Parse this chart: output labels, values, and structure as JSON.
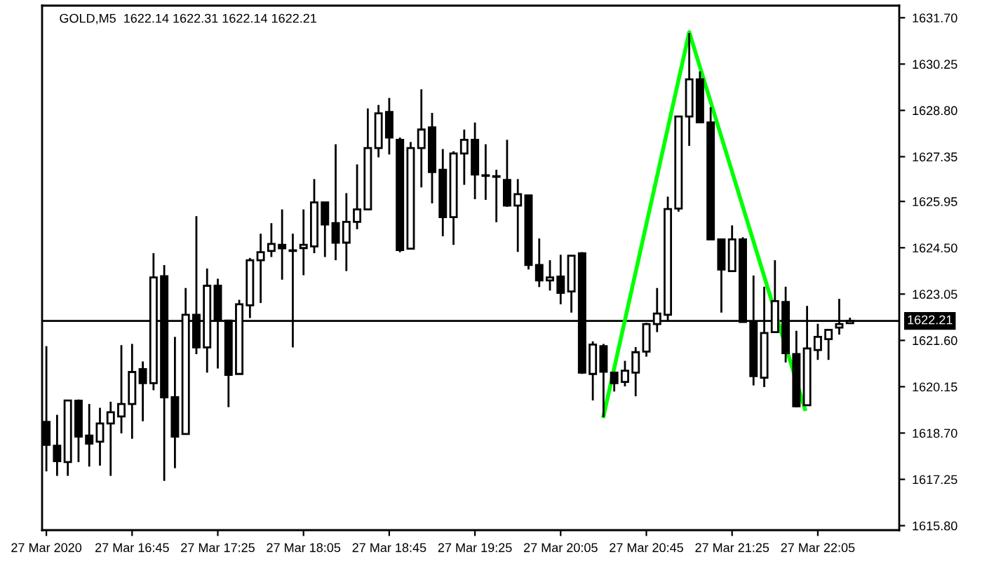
{
  "chart_data": {
    "type": "candlestick",
    "title": "GOLD,M5  1622.14 1622.31 1622.14 1622.21",
    "x": [
      "2020-03-27T16:05",
      "2020-03-27T16:10",
      "2020-03-27T16:15",
      "2020-03-27T16:20",
      "2020-03-27T16:25",
      "2020-03-27T16:30",
      "2020-03-27T16:35",
      "2020-03-27T16:40",
      "2020-03-27T16:45",
      "2020-03-27T16:50",
      "2020-03-27T16:55",
      "2020-03-27T17:00",
      "2020-03-27T17:05",
      "2020-03-27T17:10",
      "2020-03-27T17:15",
      "2020-03-27T17:20",
      "2020-03-27T17:25",
      "2020-03-27T17:30",
      "2020-03-27T17:35",
      "2020-03-27T17:40",
      "2020-03-27T17:45",
      "2020-03-27T17:50",
      "2020-03-27T17:55",
      "2020-03-27T18:00",
      "2020-03-27T18:05",
      "2020-03-27T18:10",
      "2020-03-27T18:15",
      "2020-03-27T18:20",
      "2020-03-27T18:25",
      "2020-03-27T18:30",
      "2020-03-27T18:35",
      "2020-03-27T18:40",
      "2020-03-27T18:45",
      "2020-03-27T18:50",
      "2020-03-27T18:55",
      "2020-03-27T19:00",
      "2020-03-27T19:05",
      "2020-03-27T19:10",
      "2020-03-27T19:15",
      "2020-03-27T19:20",
      "2020-03-27T19:25",
      "2020-03-27T19:30",
      "2020-03-27T19:35",
      "2020-03-27T19:40",
      "2020-03-27T19:45",
      "2020-03-27T19:50",
      "2020-03-27T19:55",
      "2020-03-27T20:00",
      "2020-03-27T20:05",
      "2020-03-27T20:10",
      "2020-03-27T20:15",
      "2020-03-27T20:20",
      "2020-03-27T20:25",
      "2020-03-27T20:30",
      "2020-03-27T20:35",
      "2020-03-27T20:40",
      "2020-03-27T20:45",
      "2020-03-27T20:50",
      "2020-03-27T20:55",
      "2020-03-27T21:00",
      "2020-03-27T21:05",
      "2020-03-27T21:10",
      "2020-03-27T21:15",
      "2020-03-27T21:20",
      "2020-03-27T21:25",
      "2020-03-27T21:30",
      "2020-03-27T21:35",
      "2020-03-27T21:40",
      "2020-03-27T21:45",
      "2020-03-27T21:50",
      "2020-03-27T21:55",
      "2020-03-27T22:00",
      "2020-03-27T22:05",
      "2020-03-27T22:10",
      "2020-03-27T22:15",
      "2020-03-27T22:20"
    ],
    "ohlc": [
      [
        1619.05,
        1621.42,
        1617.5,
        1618.33
      ],
      [
        1618.3,
        1619.27,
        1617.36,
        1617.82
      ],
      [
        1617.79,
        1619.72,
        1617.36,
        1619.72
      ],
      [
        1619.71,
        1619.75,
        1617.79,
        1618.59
      ],
      [
        1618.62,
        1619.61,
        1617.65,
        1618.37
      ],
      [
        1618.43,
        1619.49,
        1617.68,
        1619.0
      ],
      [
        1619.0,
        1619.68,
        1617.36,
        1619.35
      ],
      [
        1619.22,
        1621.45,
        1618.69,
        1619.61
      ],
      [
        1619.61,
        1621.49,
        1618.52,
        1620.61
      ],
      [
        1620.7,
        1620.94,
        1619.07,
        1620.26
      ],
      [
        1620.26,
        1624.33,
        1620.04,
        1623.57
      ],
      [
        1623.61,
        1623.96,
        1617.2,
        1619.82
      ],
      [
        1619.82,
        1621.71,
        1617.6,
        1618.59
      ],
      [
        1618.67,
        1623.24,
        1618.67,
        1622.4
      ],
      [
        1622.4,
        1625.49,
        1621.17,
        1621.38
      ],
      [
        1621.38,
        1623.85,
        1620.59,
        1623.31
      ],
      [
        1623.31,
        1623.53,
        1620.72,
        1622.25
      ],
      [
        1622.22,
        1622.22,
        1619.51,
        1620.52
      ],
      [
        1620.55,
        1622.87,
        1620.55,
        1622.73
      ],
      [
        1622.7,
        1624.18,
        1622.3,
        1624.11
      ],
      [
        1624.11,
        1624.94,
        1622.77,
        1624.36
      ],
      [
        1624.4,
        1625.27,
        1624.21,
        1624.62
      ],
      [
        1624.59,
        1625.7,
        1623.5,
        1624.48
      ],
      [
        1624.4,
        1624.94,
        1621.38,
        1624.4
      ],
      [
        1624.49,
        1625.7,
        1623.64,
        1624.59
      ],
      [
        1624.54,
        1626.65,
        1624.33,
        1625.92
      ],
      [
        1625.92,
        1625.92,
        1624.21,
        1625.23
      ],
      [
        1625.27,
        1627.74,
        1624.11,
        1624.66
      ],
      [
        1624.66,
        1626.21,
        1623.77,
        1625.31
      ],
      [
        1625.31,
        1627.11,
        1625.08,
        1625.7
      ],
      [
        1625.7,
        1628.86,
        1625.7,
        1627.62
      ],
      [
        1627.62,
        1628.97,
        1627.33,
        1628.71
      ],
      [
        1628.75,
        1629.19,
        1627.42,
        1627.95
      ],
      [
        1627.88,
        1627.95,
        1624.36,
        1624.43
      ],
      [
        1624.47,
        1627.81,
        1624.47,
        1627.62
      ],
      [
        1627.62,
        1629.46,
        1626.39,
        1628.2
      ],
      [
        1628.27,
        1628.72,
        1625.89,
        1626.87
      ],
      [
        1626.94,
        1627.59,
        1624.86,
        1625.46
      ],
      [
        1625.46,
        1627.52,
        1624.59,
        1627.45
      ],
      [
        1627.45,
        1628.2,
        1626.47,
        1627.88
      ],
      [
        1627.88,
        1628.42,
        1626.02,
        1626.79
      ],
      [
        1626.75,
        1627.74,
        1626.0,
        1626.75
      ],
      [
        1626.72,
        1626.94,
        1625.3,
        1626.72
      ],
      [
        1626.62,
        1627.88,
        1625.78,
        1625.82
      ],
      [
        1625.82,
        1626.65,
        1624.37,
        1626.18
      ],
      [
        1626.14,
        1626.14,
        1623.82,
        1623.96
      ],
      [
        1623.96,
        1624.79,
        1623.27,
        1623.48
      ],
      [
        1623.48,
        1624.11,
        1623.16,
        1623.57
      ],
      [
        1623.6,
        1624.28,
        1622.73,
        1623.09
      ],
      [
        1623.13,
        1624.25,
        1622.47,
        1624.25
      ],
      [
        1624.33,
        1624.36,
        1620.55,
        1620.59
      ],
      [
        1620.55,
        1621.57,
        1619.72,
        1621.47
      ],
      [
        1621.42,
        1621.49,
        1619.2,
        1620.62
      ],
      [
        1620.59,
        1620.59,
        1620.0,
        1620.26
      ],
      [
        1620.3,
        1620.96,
        1620.16,
        1620.65
      ],
      [
        1620.59,
        1621.39,
        1619.85,
        1621.23
      ],
      [
        1621.25,
        1622.15,
        1621.09,
        1622.11
      ],
      [
        1622.11,
        1623.24,
        1621.86,
        1622.44
      ],
      [
        1622.4,
        1626.1,
        1622.18,
        1625.71
      ],
      [
        1625.73,
        1628.61,
        1625.63,
        1628.61
      ],
      [
        1628.61,
        1631.22,
        1627.69,
        1629.77
      ],
      [
        1629.77,
        1630.02,
        1628.43,
        1628.43
      ],
      [
        1628.42,
        1628.9,
        1624.76,
        1624.76
      ],
      [
        1624.76,
        1624.76,
        1622.47,
        1623.82
      ],
      [
        1623.77,
        1625.2,
        1623.74,
        1624.76
      ],
      [
        1624.76,
        1624.83,
        1622.18,
        1622.18
      ],
      [
        1622.18,
        1623.63,
        1620.19,
        1620.48
      ],
      [
        1620.43,
        1623.28,
        1620.14,
        1621.83
      ],
      [
        1621.86,
        1624.11,
        1621.86,
        1622.83
      ],
      [
        1622.8,
        1623.28,
        1620.91,
        1621.2
      ],
      [
        1621.17,
        1621.9,
        1619.51,
        1619.54
      ],
      [
        1619.57,
        1622.68,
        1619.57,
        1621.35
      ],
      [
        1621.3,
        1622.12,
        1620.99,
        1621.71
      ],
      [
        1621.64,
        1621.96,
        1620.99,
        1621.93
      ],
      [
        1622.0,
        1622.9,
        1621.78,
        1622.11
      ],
      [
        1622.14,
        1622.31,
        1622.14,
        1622.21
      ]
    ],
    "color": "#000000",
    "series": [
      {
        "type": "line",
        "color": "#00ff00",
        "x": [
          "2020-03-27T20:25",
          "2020-03-27T21:05",
          "2020-03-27T21:59"
        ],
        "values": [
          1619.23,
          1631.25,
          1619.45
        ]
      }
    ],
    "ref_lines": [
      {
        "axis": "y",
        "value": 1622.21,
        "label": "1622.21",
        "color": "#000000"
      }
    ],
    "xlim": [
      "2020-03-27T16:03",
      "2020-03-27T22:43"
    ],
    "xticks": [
      {
        "value": "2020-03-27T16:05",
        "label": "27 Mar 2020"
      },
      {
        "value": "2020-03-27T16:45",
        "label": "27 Mar 16:45"
      },
      {
        "value": "2020-03-27T17:25",
        "label": "27 Mar 17:25"
      },
      {
        "value": "2020-03-27T18:05",
        "label": "27 Mar 18:05"
      },
      {
        "value": "2020-03-27T18:45",
        "label": "27 Mar 18:45"
      },
      {
        "value": "2020-03-27T19:25",
        "label": "27 Mar 19:25"
      },
      {
        "value": "2020-03-27T20:05",
        "label": "27 Mar 20:05"
      },
      {
        "value": "2020-03-27T20:45",
        "label": "27 Mar 20:45"
      },
      {
        "value": "2020-03-27T21:25",
        "label": "27 Mar 21:25"
      },
      {
        "value": "2020-03-27T22:05",
        "label": "27 Mar 22:05"
      }
    ],
    "ylim": [
      1615.66,
      1632.08
    ],
    "yticks": [
      {
        "value": 1615.8,
        "label": "1615.80"
      },
      1617.25,
      {
        "value": 1618.7,
        "label": "1618.70"
      },
      1620.15,
      {
        "value": 1621.6,
        "label": "1621.60"
      },
      1623.05,
      {
        "value": 1624.5,
        "label": "1624.50"
      },
      1625.95,
      1627.35,
      {
        "value": 1628.8,
        "label": "1628.80"
      },
      1630.25,
      {
        "value": 1631.7,
        "label": "1631.70"
      }
    ],
    "grid": false
  }
}
